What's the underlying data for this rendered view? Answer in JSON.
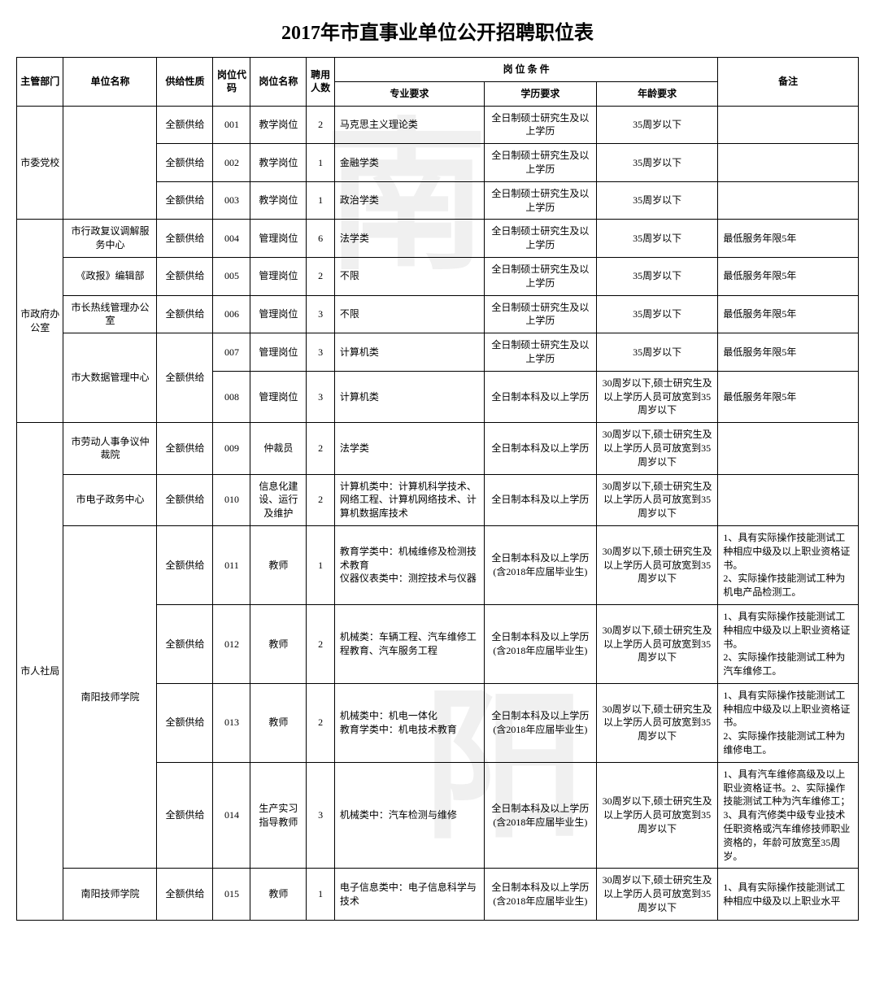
{
  "title": "2017年市直事业单位公开招聘职位表",
  "watermark1": "南",
  "watermark2": "阳",
  "headers": {
    "dept": "主管部门",
    "unit": "单位名称",
    "supply": "供给性质",
    "code": "岗位代码",
    "posname": "岗位名称",
    "count": "聘用人数",
    "conditions": "岗 位 条 件",
    "major": "专业要求",
    "edu": "学历要求",
    "age": "年龄要求",
    "note": "备注"
  },
  "rows": [
    {
      "dept": "市委党校",
      "unit": "",
      "supply": "全额供给",
      "code": "001",
      "pos": "教学岗位",
      "count": "2",
      "major": "马克思主义理论类",
      "edu": "全日制硕士研究生及以上学历",
      "age": "35周岁以下",
      "note": ""
    },
    {
      "dept": "",
      "unit": "",
      "supply": "全额供给",
      "code": "002",
      "pos": "教学岗位",
      "count": "1",
      "major": "金融学类",
      "edu": "全日制硕士研究生及以上学历",
      "age": "35周岁以下",
      "note": ""
    },
    {
      "dept": "",
      "unit": "",
      "supply": "全额供给",
      "code": "003",
      "pos": "教学岗位",
      "count": "1",
      "major": "政治学类",
      "edu": "全日制硕士研究生及以上学历",
      "age": "35周岁以下",
      "note": ""
    },
    {
      "dept": "市政府办公室",
      "unit": "市行政复议调解服务中心",
      "supply": "全额供给",
      "code": "004",
      "pos": "管理岗位",
      "count": "6",
      "major": "法学类",
      "edu": "全日制硕士研究生及以上学历",
      "age": "35周岁以下",
      "note": "最低服务年限5年"
    },
    {
      "dept": "",
      "unit": "《政报》编辑部",
      "supply": "全额供给",
      "code": "005",
      "pos": "管理岗位",
      "count": "2",
      "major": "不限",
      "edu": "全日制硕士研究生及以上学历",
      "age": "35周岁以下",
      "note": "最低服务年限5年"
    },
    {
      "dept": "",
      "unit": "市长热线管理办公室",
      "supply": "全额供给",
      "code": "006",
      "pos": "管理岗位",
      "count": "3",
      "major": "不限",
      "edu": "全日制硕士研究生及以上学历",
      "age": "35周岁以下",
      "note": "最低服务年限5年"
    },
    {
      "dept": "",
      "unit": "市大数据管理中心",
      "supply": "全额供给",
      "code": "007",
      "pos": "管理岗位",
      "count": "3",
      "major": "计算机类",
      "edu": "全日制硕士研究生及以上学历",
      "age": "35周岁以下",
      "note": "最低服务年限5年"
    },
    {
      "dept": "",
      "unit": "",
      "supply": "",
      "code": "008",
      "pos": "管理岗位",
      "count": "3",
      "major": "计算机类",
      "edu": "全日制本科及以上学历",
      "age": "30周岁以下,硕士研究生及以上学历人员可放宽到35周岁以下",
      "note": "最低服务年限5年"
    },
    {
      "dept": "市人社局",
      "unit": "市劳动人事争议仲裁院",
      "supply": "全额供给",
      "code": "009",
      "pos": "仲裁员",
      "count": "2",
      "major": "法学类",
      "edu": "全日制本科及以上学历",
      "age": "30周岁以下,硕士研究生及以上学历人员可放宽到35周岁以下",
      "note": ""
    },
    {
      "dept": "",
      "unit": "市电子政务中心",
      "supply": "全额供给",
      "code": "010",
      "pos": "信息化建设、运行及维护",
      "count": "2",
      "major": "计算机类中：计算机科学技术、网络工程、计算机网络技术、计算机数据库技术",
      "edu": "全日制本科及以上学历",
      "age": "30周岁以下,硕士研究生及以上学历人员可放宽到35周岁以下",
      "note": ""
    },
    {
      "dept": "",
      "unit": "南阳技师学院",
      "supply": "全额供给",
      "code": "011",
      "pos": "教师",
      "count": "1",
      "major": "教育学类中：机械维修及检测技术教育\n仪器仪表类中：测控技术与仪器",
      "edu": "全日制本科及以上学历(含2018年应届毕业生)",
      "age": "30周岁以下,硕士研究生及以上学历人员可放宽到35周岁以下",
      "note": "1、具有实际操作技能测试工种相应中级及以上职业资格证书。\n2、实际操作技能测试工种为机电产品检测工。"
    },
    {
      "dept": "",
      "unit": "",
      "supply": "全额供给",
      "code": "012",
      "pos": "教师",
      "count": "2",
      "major": "机械类：车辆工程、汽车维修工程教育、汽车服务工程",
      "edu": "全日制本科及以上学历(含2018年应届毕业生)",
      "age": "30周岁以下,硕士研究生及以上学历人员可放宽到35周岁以下",
      "note": "1、具有实际操作技能测试工种相应中级及以上职业资格证书。\n2、实际操作技能测试工种为汽车维修工。"
    },
    {
      "dept": "",
      "unit": "",
      "supply": "全额供给",
      "code": "013",
      "pos": "教师",
      "count": "2",
      "major": "机械类中：机电一体化\n教育学类中：机电技术教育",
      "edu": "全日制本科及以上学历(含2018年应届毕业生)",
      "age": "30周岁以下,硕士研究生及以上学历人员可放宽到35周岁以下",
      "note": "1、具有实际操作技能测试工种相应中级及以上职业资格证书。\n2、实际操作技能测试工种为维修电工。"
    },
    {
      "dept": "",
      "unit": "",
      "supply": "全额供给",
      "code": "014",
      "pos": "生产实习指导教师",
      "count": "3",
      "major": "机械类中：汽车检测与维修",
      "edu": "全日制本科及以上学历(含2018年应届毕业生)",
      "age": "30周岁以下,硕士研究生及以上学历人员可放宽到35周岁以下",
      "note": "1、具有汽车维修高级及以上职业资格证书。2、实际操作技能测试工种为汽车维修工；3、具有汽修类中级专业技术任职资格或汽车维修技师职业资格的，年龄可放宽至35周岁。"
    },
    {
      "dept": "",
      "unit": "南阳技师学院",
      "supply": "全额供给",
      "code": "015",
      "pos": "教师",
      "count": "1",
      "major": "电子信息类中：电子信息科学与技术",
      "edu": "全日制本科及以上学历(含2018年应届毕业生)",
      "age": "30周岁以下,硕士研究生及以上学历人员可放宽到35周岁以下",
      "note": "1、具有实际操作技能测试工种相应中级及以上职业水平"
    }
  ],
  "rowspans": {
    "dept": [
      3,
      0,
      0,
      5,
      0,
      0,
      0,
      0,
      7,
      0,
      0,
      0,
      0,
      0,
      0
    ],
    "unit": [
      3,
      0,
      0,
      1,
      1,
      1,
      2,
      0,
      1,
      1,
      4,
      0,
      0,
      0,
      1
    ],
    "supply": [
      1,
      1,
      1,
      1,
      1,
      1,
      2,
      0,
      1,
      1,
      1,
      1,
      1,
      1,
      1
    ]
  }
}
